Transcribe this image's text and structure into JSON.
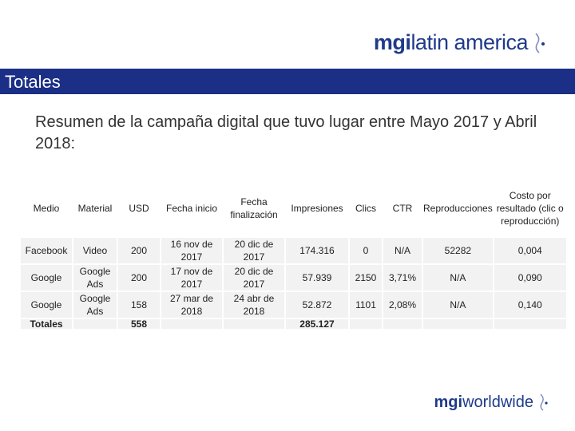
{
  "logo_top": {
    "part1": "mgi",
    "part2": "latin america"
  },
  "title": "Totales",
  "subtitle": "Resumen de la campaña digital que tuvo lugar entre Mayo 2017 y Abril 2018:",
  "table": {
    "headers": [
      "Medio",
      "Material",
      "USD",
      "Fecha inicio",
      "Fecha finalización",
      "Impresiones",
      "Clics",
      "CTR",
      "Reproducciones",
      "Costo por resultado (clic o reproducción)"
    ],
    "rows": [
      [
        "Facebook",
        "Video",
        "200",
        "16 nov de 2017",
        "20 dic de 2017",
        "174.316",
        "0",
        "N/A",
        "52282",
        "0,004"
      ],
      [
        "Google",
        "Google Ads",
        "200",
        "17 nov de 2017",
        "20 dic de 2017",
        "57.939",
        "2150",
        "3,71%",
        "N/A",
        "0,090"
      ],
      [
        "Google",
        "Google Ads",
        "158",
        "27 mar de 2018",
        "24 abr de 2018",
        "52.872",
        "1101",
        "2,08%",
        "N/A",
        "0,140"
      ]
    ],
    "totals": [
      "Totales",
      "",
      "558",
      "",
      "",
      "285.127",
      "",
      "",
      "",
      ""
    ]
  },
  "logo_bottom": {
    "part1": "mgi",
    "part2": "worldwide"
  },
  "colors": {
    "accent": "#1b2f86",
    "cell": "#f2f2f2"
  }
}
